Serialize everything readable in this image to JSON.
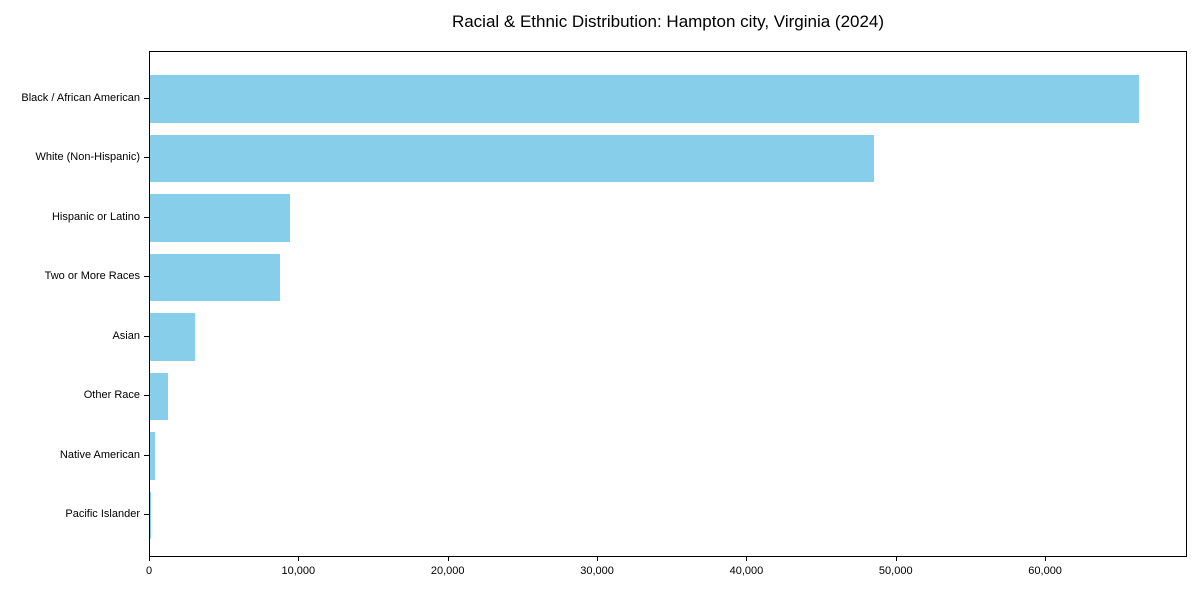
{
  "chart_data": {
    "type": "bar",
    "orientation": "horizontal",
    "title": "Racial & Ethnic Distribution: Hampton city, Virginia (2024)",
    "categories": [
      "Black / African American",
      "White (Non-Hispanic)",
      "Hispanic or Latino",
      "Two or More Races",
      "Asian",
      "Other Race",
      "Native American",
      "Pacific Islander"
    ],
    "values": [
      66200,
      48500,
      9400,
      8700,
      3000,
      1200,
      350,
      50
    ],
    "xlabel": "",
    "ylabel": "",
    "xlim": [
      0,
      69500
    ],
    "x_ticks": [
      0,
      10000,
      20000,
      30000,
      40000,
      50000,
      60000
    ],
    "x_tick_labels": [
      "0",
      "10,000",
      "20,000",
      "30,000",
      "40,000",
      "50,000",
      "60,000"
    ],
    "grid": false,
    "legend": "none",
    "bar_color": "#87CEEB",
    "axis_color": "#000000",
    "background_color": "#FFFFFF",
    "text_color": "#000000"
  }
}
